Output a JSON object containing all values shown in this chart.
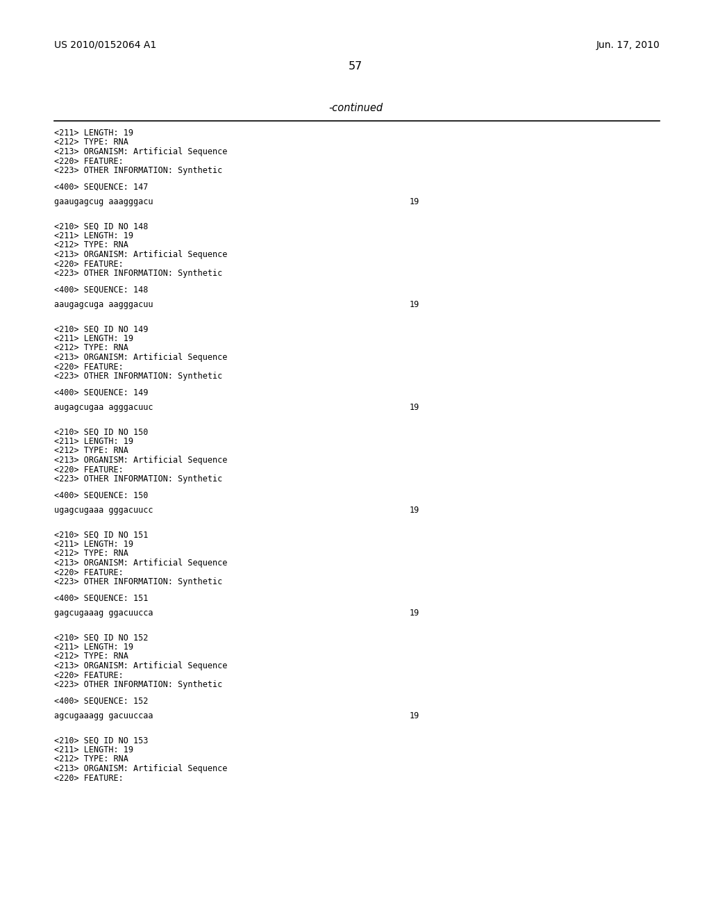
{
  "bg_color": "#ffffff",
  "header_left": "US 2010/0152064 A1",
  "header_right": "Jun. 17, 2010",
  "page_number": "57",
  "continued_label": "-continued",
  "body_font_size": 8.5,
  "header_font_size": 10.0,
  "page_num_font_size": 11.5,
  "continued_font_size": 10.5,
  "content_blocks": [
    {
      "meta_lines": [
        "<211> LENGTH: 19",
        "<212> TYPE: RNA",
        "<213> ORGANISM: Artificial Sequence",
        "<220> FEATURE:",
        "<223> OTHER INFORMATION: Synthetic"
      ],
      "seq_label": "<400> SEQUENCE: 147",
      "sequence": "gaaugagcug aaagggacu",
      "seq_number": "19"
    },
    {
      "meta_lines": [
        "<210> SEQ ID NO 148",
        "<211> LENGTH: 19",
        "<212> TYPE: RNA",
        "<213> ORGANISM: Artificial Sequence",
        "<220> FEATURE:",
        "<223> OTHER INFORMATION: Synthetic"
      ],
      "seq_label": "<400> SEQUENCE: 148",
      "sequence": "aaugagcuga aagggacuu",
      "seq_number": "19"
    },
    {
      "meta_lines": [
        "<210> SEQ ID NO 149",
        "<211> LENGTH: 19",
        "<212> TYPE: RNA",
        "<213> ORGANISM: Artificial Sequence",
        "<220> FEATURE:",
        "<223> OTHER INFORMATION: Synthetic"
      ],
      "seq_label": "<400> SEQUENCE: 149",
      "sequence": "augagcugaa agggacuuc",
      "seq_number": "19"
    },
    {
      "meta_lines": [
        "<210> SEQ ID NO 150",
        "<211> LENGTH: 19",
        "<212> TYPE: RNA",
        "<213> ORGANISM: Artificial Sequence",
        "<220> FEATURE:",
        "<223> OTHER INFORMATION: Synthetic"
      ],
      "seq_label": "<400> SEQUENCE: 150",
      "sequence": "ugagcugaaa gggacuucc",
      "seq_number": "19"
    },
    {
      "meta_lines": [
        "<210> SEQ ID NO 151",
        "<211> LENGTH: 19",
        "<212> TYPE: RNA",
        "<213> ORGANISM: Artificial Sequence",
        "<220> FEATURE:",
        "<223> OTHER INFORMATION: Synthetic"
      ],
      "seq_label": "<400> SEQUENCE: 151",
      "sequence": "gagcugaaag ggacuucca",
      "seq_number": "19"
    },
    {
      "meta_lines": [
        "<210> SEQ ID NO 152",
        "<211> LENGTH: 19",
        "<212> TYPE: RNA",
        "<213> ORGANISM: Artificial Sequence",
        "<220> FEATURE:",
        "<223> OTHER INFORMATION: Synthetic"
      ],
      "seq_label": "<400> SEQUENCE: 152",
      "sequence": "agcugaaagg gacuuccaa",
      "seq_number": "19"
    },
    {
      "meta_lines": [
        "<210> SEQ ID NO 153",
        "<211> LENGTH: 19",
        "<212> TYPE: RNA",
        "<213> ORGANISM: Artificial Sequence",
        "<220> FEATURE:"
      ],
      "seq_label": null,
      "sequence": null,
      "seq_number": null
    }
  ]
}
